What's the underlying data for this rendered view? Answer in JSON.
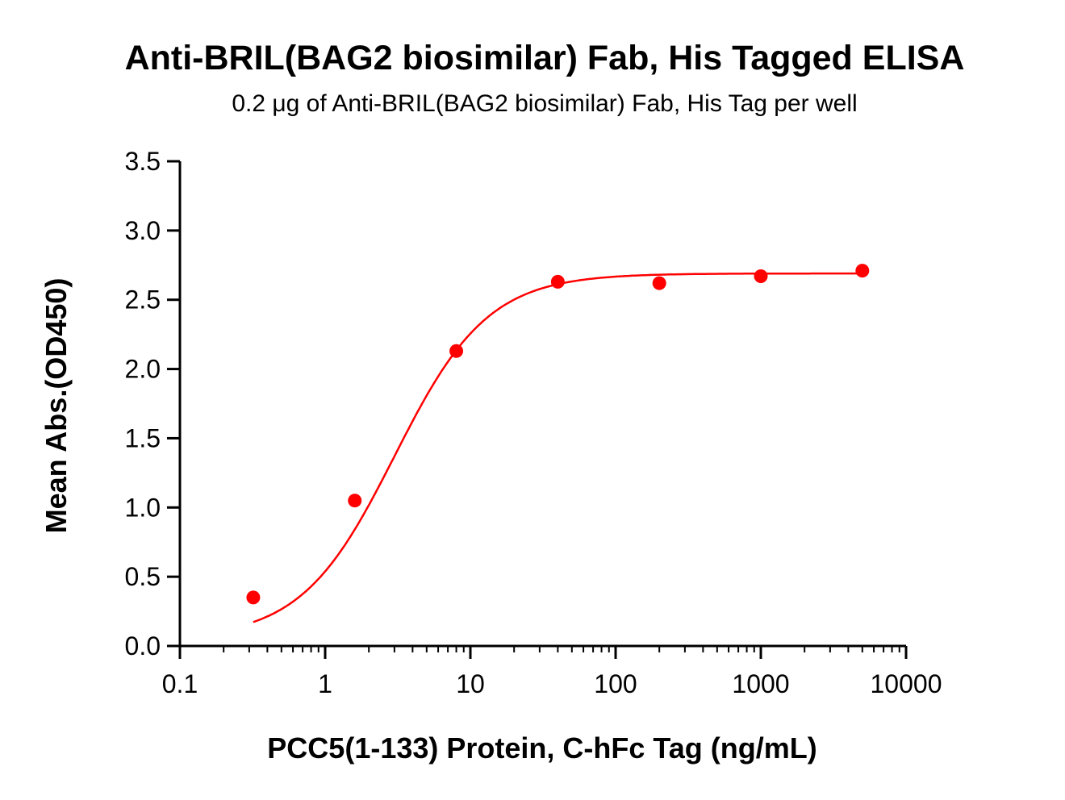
{
  "chart_data": {
    "type": "scatter",
    "title": "Anti-BRIL(BAG2 biosimilar) Fab, His Tagged ELISA",
    "subtitle": "0.2 μg of Anti-BRIL(BAG2 biosimilar) Fab, His Tag per well",
    "xlabel": "PCC5(1-133) Protein, C-hFc Tag (ng/mL)",
    "ylabel": "Mean Abs.(OD450)",
    "xscale": "log",
    "xlim": [
      0.1,
      10000
    ],
    "ylim": [
      0,
      3.5
    ],
    "xticks": [
      "0.1",
      "1",
      "10",
      "100",
      "1000",
      "10000"
    ],
    "yticks": [
      "0.0",
      "0.5",
      "1.0",
      "1.5",
      "2.0",
      "2.5",
      "3.0",
      "3.5"
    ],
    "grid": false,
    "color": "#ff0000",
    "fit": "sigmoidal 4PL curve",
    "x": [
      0.32,
      1.6,
      8,
      40,
      200,
      1000,
      5000
    ],
    "y": [
      0.35,
      1.05,
      2.13,
      2.63,
      2.62,
      2.67,
      2.71
    ]
  }
}
